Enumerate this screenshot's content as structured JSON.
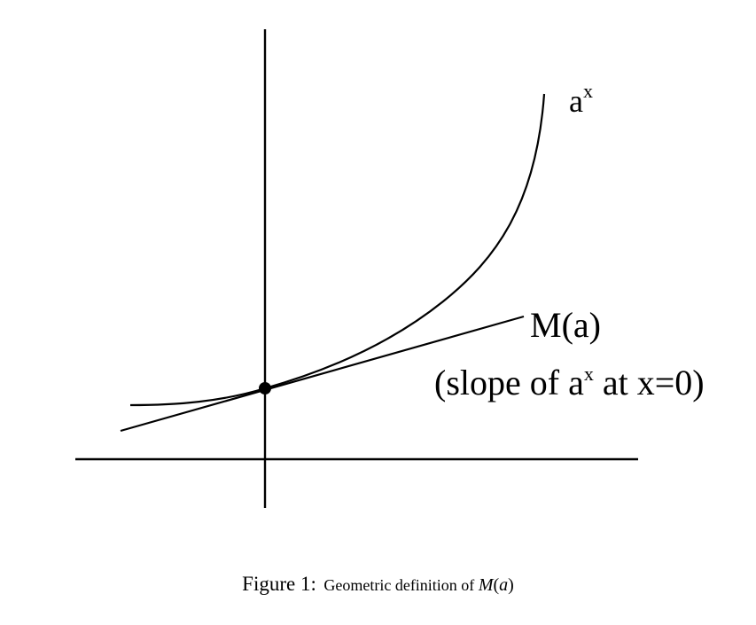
{
  "diagram": {
    "curve_label_base": "a",
    "curve_label_exp": "x",
    "tangent_label": "M(a)",
    "slope_note_prefix": "(slope of a",
    "slope_note_exp": "x",
    "slope_note_suffix": " at x=0)",
    "stroke_color": "#000000"
  },
  "caption": {
    "label": "Figure 1:",
    "text": "Geometric definition of ",
    "math_func": "M",
    "math_open": "(",
    "math_arg": "a",
    "math_close": ")"
  }
}
